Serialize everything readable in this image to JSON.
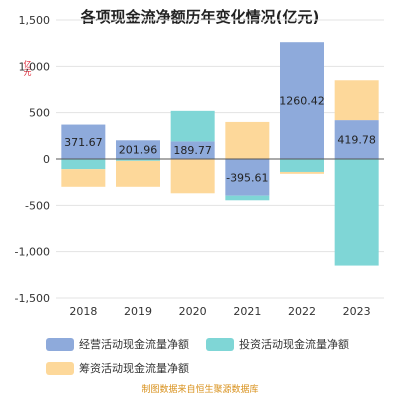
{
  "title": "各项现金流净额历年变化情况(亿元)",
  "unit": "亿元",
  "source": "制图数据来自恒生聚源数据库",
  "chart_data": {
    "type": "bar",
    "stacked": true,
    "title": "各项现金流净额历年变化情况(亿元)",
    "categories": [
      "2018",
      "2019",
      "2020",
      "2021",
      "2022",
      "2023"
    ],
    "ylim": [
      -1500,
      1500
    ],
    "yticks": [
      1500,
      1000,
      500,
      0,
      -500,
      -1000,
      -1500
    ],
    "ytick_labels": [
      "1,500",
      "1,000",
      "500",
      "0",
      "-500",
      "-1,000",
      "-1,500"
    ],
    "grid": true,
    "legend_position": "bottom",
    "series": [
      {
        "name": "经营活动现金流量净额",
        "color": "#8eaadb",
        "values": [
          371.67,
          201.96,
          189.77,
          -395.61,
          1260.42,
          419.78
        ],
        "labels": [
          "371.67",
          "201.96",
          "189.77",
          "-395.61",
          "1260.42",
          "419.78"
        ]
      },
      {
        "name": "投资活动现金流量净额",
        "color": "#7fd6d6",
        "values": [
          -110,
          -20,
          330,
          -50,
          -140,
          -1150
        ]
      },
      {
        "name": "筹资活动现金流量净额",
        "color": "#fdd89a",
        "values": [
          -190,
          -280,
          -370,
          400,
          -20,
          430
        ]
      }
    ]
  }
}
